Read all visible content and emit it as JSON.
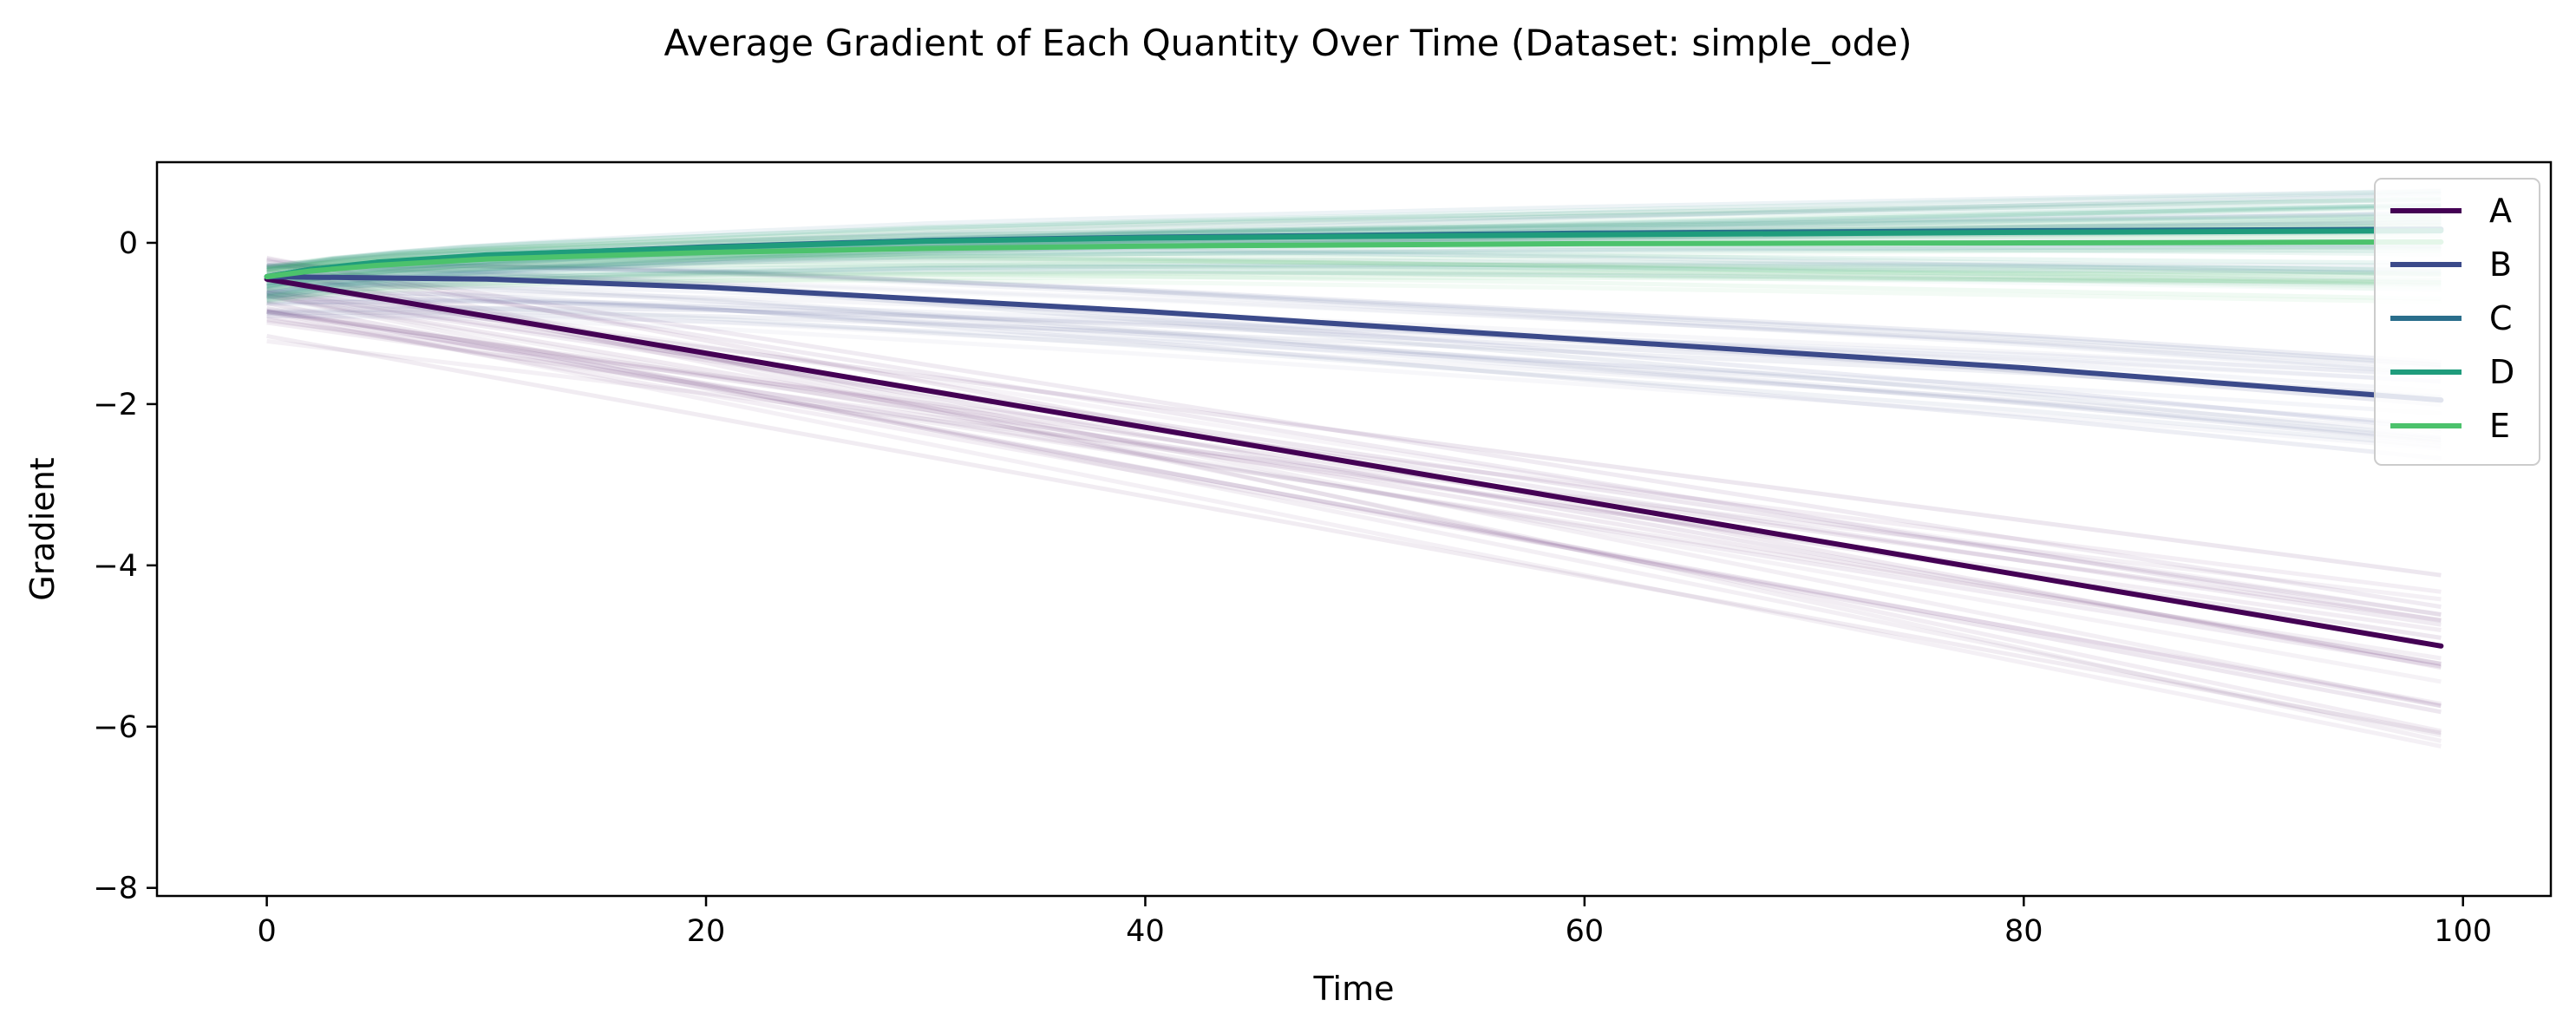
{
  "chart_data": {
    "type": "line",
    "title": "Average Gradient of Each Quantity Over Time (Dataset: simple_ode)",
    "xlabel": "Time",
    "ylabel": "Gradient",
    "xlim": [
      -5,
      104
    ],
    "ylim": [
      -8.1,
      1.0
    ],
    "xticks": [
      0,
      20,
      40,
      60,
      80,
      100
    ],
    "yticks": [
      0,
      -2,
      -4,
      -6,
      -8
    ],
    "xtick_labels": [
      "0",
      "20",
      "40",
      "60",
      "80",
      "100"
    ],
    "ytick_labels": [
      "0",
      "−2",
      "−4",
      "−6",
      "−8"
    ],
    "grid": false,
    "legend_position": "top-right",
    "series": [
      {
        "name": "A",
        "color": "#440154",
        "x": [
          0,
          99
        ],
        "y": [
          -0.45,
          -5.0
        ]
      },
      {
        "name": "B",
        "color": "#3b4a8a",
        "x": [
          0,
          10,
          20,
          40,
          60,
          80,
          99
        ],
        "y": [
          -0.42,
          -0.45,
          -0.55,
          -0.85,
          -1.2,
          -1.55,
          -1.95
        ]
      },
      {
        "name": "C",
        "color": "#2a6e8c",
        "x": [
          0,
          2,
          5,
          10,
          20,
          30,
          40,
          60,
          80,
          99
        ],
        "y": [
          -0.42,
          -0.33,
          -0.25,
          -0.16,
          -0.05,
          0.03,
          0.07,
          0.12,
          0.15,
          0.17
        ]
      },
      {
        "name": "D",
        "color": "#1f9c7c",
        "x": [
          0,
          2,
          5,
          10,
          20,
          30,
          40,
          60,
          80,
          99
        ],
        "y": [
          -0.42,
          -0.33,
          -0.24,
          -0.15,
          -0.06,
          0.02,
          0.06,
          0.1,
          0.13,
          0.15
        ]
      },
      {
        "name": "E",
        "color": "#4cc26c",
        "x": [
          0,
          2,
          5,
          10,
          20,
          30,
          40,
          60,
          80,
          99
        ],
        "y": [
          -0.42,
          -0.35,
          -0.28,
          -0.2,
          -0.12,
          -0.07,
          -0.04,
          -0.01,
          0.0,
          0.01
        ]
      }
    ]
  }
}
